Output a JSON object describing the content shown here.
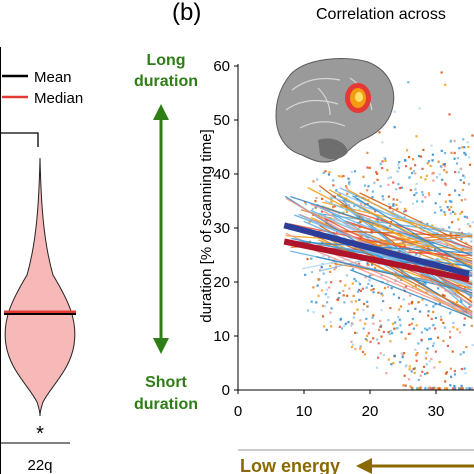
{
  "panel_left": {
    "legend": {
      "mean": "Mean",
      "median": "Median"
    },
    "xtick": "22q",
    "significance": "*"
  },
  "panel_right": {
    "panel_label": "(b)",
    "title": "Correlation across",
    "long_label_1": "Long",
    "long_label_2": "duration",
    "short_label_1": "Short",
    "short_label_2": "duration",
    "bottom_arrow_label": "Low energy"
  },
  "colors": {
    "green": "#2e7d16",
    "brown": "#8a6a00",
    "mean": "#000000",
    "median": "#e53935",
    "violin_fill": "#f7b8b8",
    "mean_line": "#2c3e99",
    "median_line": "#b0142a"
  },
  "chart_data": [
    {
      "type": "violin",
      "categories": [
        "22q"
      ],
      "legend": [
        "Mean",
        "Median"
      ],
      "annotation": "*"
    },
    {
      "type": "scatter",
      "title": "Correlation across",
      "xlabel": "",
      "ylabel": "duration [% of scanning time]",
      "xlim": [
        0,
        35
      ],
      "ylim": [
        0,
        60
      ],
      "xticks": [
        0,
        10,
        20,
        30
      ],
      "yticks": [
        0,
        10,
        20,
        30,
        40,
        50,
        60
      ],
      "series": [
        {
          "x": [
            7,
            35
          ],
          "y": [
            30.5,
            21.5
          ],
          "role": "mean"
        },
        {
          "x": [
            7,
            35
          ],
          "y": [
            27.5,
            20.5
          ],
          "role": "median"
        }
      ]
    }
  ]
}
